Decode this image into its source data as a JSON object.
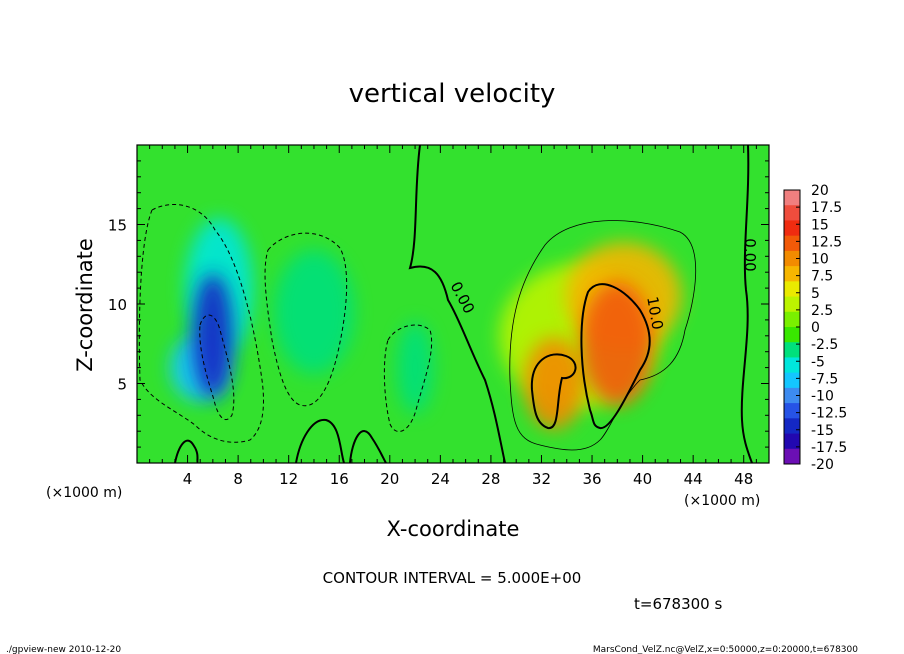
{
  "chart_data": {
    "type": "heatmap",
    "title": "vertical velocity",
    "xlabel": "X-coordinate",
    "ylabel": "Z-coordinate",
    "x_unit": "(×1000 m)",
    "z_unit": "(×1000 m)",
    "xlim": [
      0,
      50
    ],
    "ylim": [
      0,
      20
    ],
    "x_ticks": [
      4,
      8,
      12,
      16,
      20,
      24,
      28,
      32,
      36,
      40,
      44,
      48
    ],
    "y_ticks": [
      5,
      10,
      15
    ],
    "colorbar": {
      "labels": [
        "20",
        "17.5",
        "15",
        "12.5",
        "10",
        "7.5",
        "5",
        "2.5",
        "0",
        "-2.5",
        "-5",
        "-7.5",
        "-10",
        "-12.5",
        "-15",
        "-17.5",
        "-20"
      ],
      "colors": [
        "#f07f7f",
        "#ef4d3d",
        "#f02c10",
        "#f25a08",
        "#f28b00",
        "#f6b600",
        "#eaea00",
        "#bcf400",
        "#7af000",
        "#39e800",
        "#00e07c",
        "#00e6dc",
        "#14c6ff",
        "#3d8bf0",
        "#2653e6",
        "#1428c4",
        "#2208b0",
        "#6b0fb4"
      ]
    },
    "contour_labels": [
      "0.00",
      "0.00",
      "10.0"
    ],
    "features": [
      {
        "x": 6.0,
        "z": 8.0,
        "w": -14
      },
      {
        "x": 6.5,
        "z": 11.0,
        "w": -6
      },
      {
        "x": 5.0,
        "z": 6.0,
        "w": -8
      },
      {
        "x": 14.0,
        "z": 9.5,
        "w": -2.5
      },
      {
        "x": 22.0,
        "z": 6.0,
        "w": -4
      },
      {
        "x": 38.0,
        "z": 7.5,
        "w": 12
      },
      {
        "x": 38.5,
        "z": 10.5,
        "w": 8
      },
      {
        "x": 33.0,
        "z": 5.0,
        "w": 10
      },
      {
        "x": 35.0,
        "z": 8.0,
        "w": 4
      }
    ]
  },
  "annotations": {
    "contour_interval": "CONTOUR INTERVAL = 5.000E+00",
    "time": "t=678300 s",
    "footer_left": "./gpview-new  2010-12-20",
    "footer_right": "MarsCond_VelZ.nc@VelZ,x=0:50000,z=0:20000,t=678300"
  }
}
